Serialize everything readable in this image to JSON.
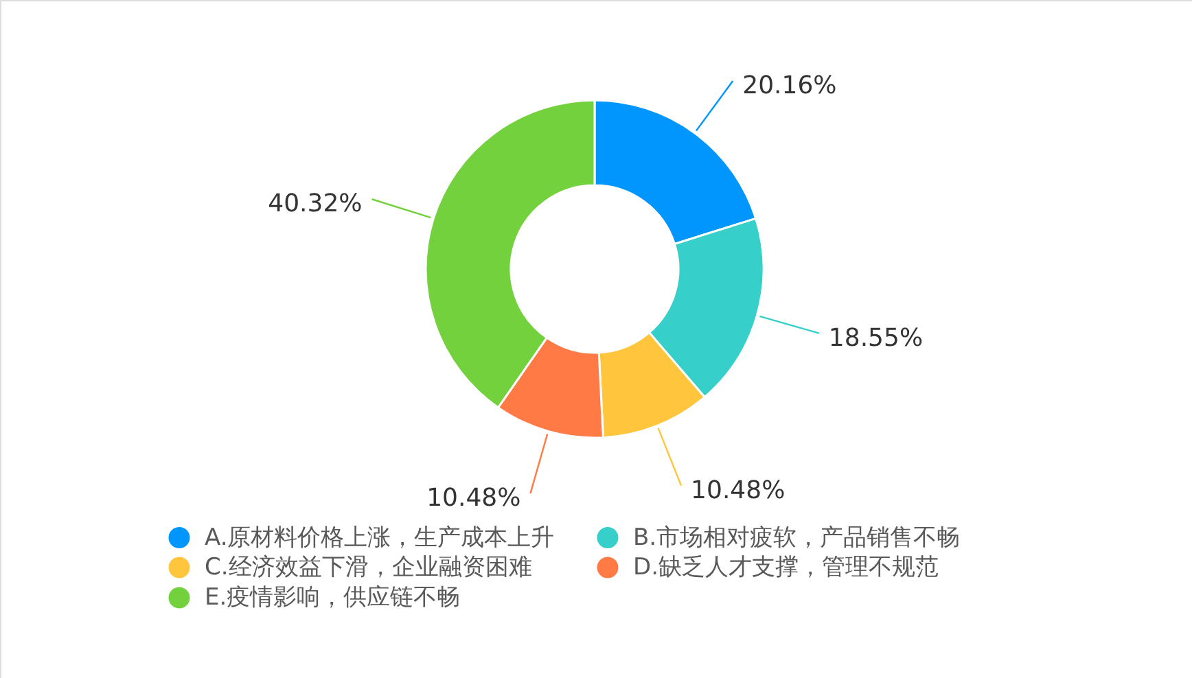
{
  "chart_data": {
    "type": "donut",
    "categories": [
      "A.原材料价格上涨，生产成本上升",
      "B.市场相对疲软，产品销售不畅",
      "C.经济效益下滑，企业融资困难",
      "D.缺乏人才支撑，管理不规范",
      "E.疫情影响，供应链不畅"
    ],
    "values": [
      20.16,
      18.55,
      10.48,
      10.48,
      40.32
    ],
    "colors": [
      "#0096fe",
      "#36cfc9",
      "#ffc53d",
      "#ff7a45",
      "#73d13d"
    ],
    "value_labels": [
      "20.16%",
      "18.55%",
      "10.48%",
      "10.48%",
      "40.32%"
    ],
    "legend": "bottom"
  }
}
